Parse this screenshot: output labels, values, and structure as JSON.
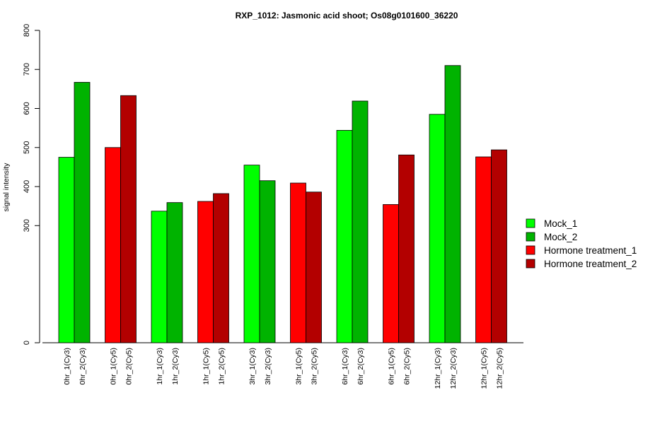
{
  "chart_data": {
    "type": "bar",
    "title": "RXP_1012: Jasmonic acid shoot; Os08g0101600_36220",
    "ylabel": "signal intensity",
    "xlabel": "",
    "yticks": [
      0,
      300,
      400,
      500,
      600,
      700,
      800
    ],
    "ylim": [
      0,
      800
    ],
    "grid": false,
    "legend_position": "right",
    "series": [
      {
        "name": "Mock_1",
        "color": "#00ff00"
      },
      {
        "name": "Mock_2",
        "color": "#00b300"
      },
      {
        "name": "Hormone treatment_1",
        "color": "#ff0000"
      },
      {
        "name": "Hormone treatment_2",
        "color": "#b30000"
      }
    ],
    "groups": [
      {
        "bars": [
          {
            "label": "0hr_1(Cy3)",
            "value": 475,
            "series": 0
          },
          {
            "label": "0hr_2(Cy3)",
            "value": 667,
            "series": 1
          }
        ]
      },
      {
        "bars": [
          {
            "label": "0hr_1(Cy5)",
            "value": 500,
            "series": 2
          },
          {
            "label": "0hr_2(Cy5)",
            "value": 633,
            "series": 3
          }
        ]
      },
      {
        "bars": [
          {
            "label": "1hr_1(Cy3)",
            "value": 337,
            "series": 0
          },
          {
            "label": "1hr_2(Cy3)",
            "value": 359,
            "series": 1
          }
        ]
      },
      {
        "bars": [
          {
            "label": "1hr_1(Cy5)",
            "value": 362,
            "series": 2
          },
          {
            "label": "1hr_2(Cy5)",
            "value": 382,
            "series": 3
          }
        ]
      },
      {
        "bars": [
          {
            "label": "3hr_1(Cy3)",
            "value": 455,
            "series": 0
          },
          {
            "label": "3hr_2(Cy3)",
            "value": 415,
            "series": 1
          }
        ]
      },
      {
        "bars": [
          {
            "label": "3hr_1(Cy5)",
            "value": 409,
            "series": 2
          },
          {
            "label": "3hr_2(Cy5)",
            "value": 386,
            "series": 3
          }
        ]
      },
      {
        "bars": [
          {
            "label": "6hr_1(Cy3)",
            "value": 544,
            "series": 0
          },
          {
            "label": "6hr_2(Cy3)",
            "value": 619,
            "series": 1
          }
        ]
      },
      {
        "bars": [
          {
            "label": "6hr_1(Cy5)",
            "value": 354,
            "series": 2
          },
          {
            "label": "6hr_2(Cy5)",
            "value": 481,
            "series": 3
          }
        ]
      },
      {
        "bars": [
          {
            "label": "12hr_1(Cy3)",
            "value": 585,
            "series": 0
          },
          {
            "label": "12hr_2(Cy3)",
            "value": 710,
            "series": 1
          }
        ]
      },
      {
        "bars": [
          {
            "label": "12hr_1(Cy5)",
            "value": 476,
            "series": 2
          },
          {
            "label": "12hr_2(Cy5)",
            "value": 494,
            "series": 3
          }
        ]
      }
    ]
  }
}
